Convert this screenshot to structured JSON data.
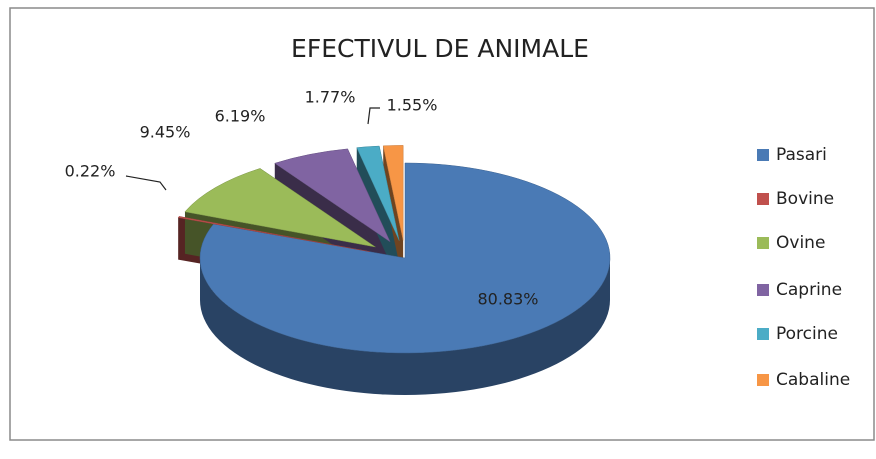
{
  "chart_data": {
    "type": "pie",
    "title": "EFECTIVUL DE ANIMALE",
    "categories": [
      "Pasari",
      "Bovine",
      "Ovine",
      "Caprine",
      "Porcine",
      "Cabaline"
    ],
    "values": [
      80.83,
      0.22,
      9.45,
      6.19,
      1.77,
      1.55
    ],
    "value_labels": [
      "80.83%",
      "0.22%",
      "9.45%",
      "6.19%",
      "1.77%",
      "1.55%"
    ],
    "colors": [
      "#4a7ab5",
      "#c0504d",
      "#9bbb59",
      "#8064a2",
      "#4bacc6",
      "#f79646"
    ],
    "legend": "right"
  }
}
